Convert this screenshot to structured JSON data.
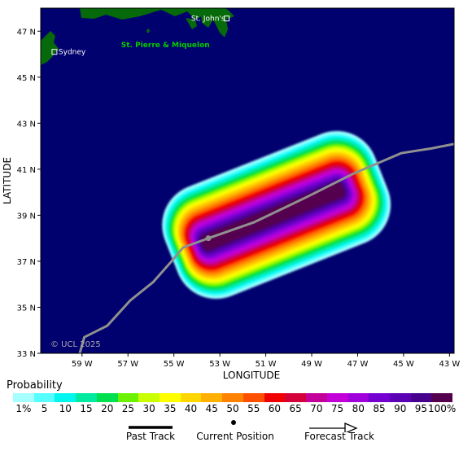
{
  "map": {
    "xlabel": "LONGITUDE",
    "ylabel": "LATITUDE",
    "lon_range": [
      -60.8,
      -42.8
    ],
    "lat_range": [
      33.0,
      48.0
    ],
    "lon_ticks": [
      {
        "value": -59,
        "label": "59 W"
      },
      {
        "value": -57,
        "label": "57 W"
      },
      {
        "value": -55,
        "label": "55 W"
      },
      {
        "value": -53,
        "label": "53 W"
      },
      {
        "value": -51,
        "label": "51 W"
      },
      {
        "value": -49,
        "label": "49 W"
      },
      {
        "value": -47,
        "label": "47 W"
      },
      {
        "value": -45,
        "label": "45 W"
      },
      {
        "value": -43,
        "label": "43 W"
      }
    ],
    "lat_ticks": [
      {
        "value": 47,
        "label": "47 N"
      },
      {
        "value": 45,
        "label": "45 N"
      },
      {
        "value": 43,
        "label": "43 N"
      },
      {
        "value": 41,
        "label": "41 N"
      },
      {
        "value": 39,
        "label": "39 N"
      },
      {
        "value": 37,
        "label": "37 N"
      },
      {
        "value": 35,
        "label": "35 N"
      },
      {
        "value": 33,
        "label": "33 N"
      }
    ],
    "ocean_color": "#00006e",
    "land_color": "#066a0b",
    "places": [
      {
        "name": "St. John's",
        "lon": -52.7,
        "lat": 47.55,
        "color": "#ffffff",
        "marker": true
      },
      {
        "name": "Sydney",
        "lon": -60.2,
        "lat": 46.1,
        "color": "#ffffff",
        "marker": true
      },
      {
        "name": "St. Pierre & Miquelon",
        "lon": -57.3,
        "lat": 46.4,
        "color": "#00cc00",
        "marker": false
      }
    ],
    "watermark": "© UCL 2025",
    "track": {
      "color": "#909090",
      "points": [
        {
          "lon": -59.1,
          "lat": 33.0
        },
        {
          "lon": -58.9,
          "lat": 33.7
        },
        {
          "lon": -57.9,
          "lat": 34.2
        },
        {
          "lon": -56.9,
          "lat": 35.3
        },
        {
          "lon": -55.9,
          "lat": 36.1
        },
        {
          "lon": -55.1,
          "lat": 37.0
        },
        {
          "lon": -54.6,
          "lat": 37.6
        },
        {
          "lon": -53.5,
          "lat": 38.0
        },
        {
          "lon": -51.5,
          "lat": 38.7
        },
        {
          "lon": -49.2,
          "lat": 39.8
        },
        {
          "lon": -47.2,
          "lat": 40.8
        },
        {
          "lon": -45.1,
          "lat": 41.7
        },
        {
          "lon": -43.8,
          "lat": 41.9
        },
        {
          "lon": -42.8,
          "lat": 42.1
        }
      ]
    },
    "probability_field": {
      "start": {
        "lon": -53.6,
        "lat": 37.8
      },
      "end": {
        "lon": -47.8,
        "lat": 40.1
      },
      "peak_percent": 100
    }
  },
  "legend": {
    "title": "Probability",
    "colors": [
      "#a6ffff",
      "#55ffff",
      "#00f6ee",
      "#00eaa0",
      "#00e04f",
      "#6cf200",
      "#c9ff00",
      "#ffff00",
      "#ffd700",
      "#ffb000",
      "#ff8200",
      "#ff5000",
      "#f00000",
      "#d3003a",
      "#c4009a",
      "#c400d8",
      "#a000dc",
      "#7500d2",
      "#5b00b2",
      "#46008d",
      "#55004f"
    ],
    "labels": [
      "1%",
      "5",
      "10",
      "15",
      "20",
      "25",
      "30",
      "35",
      "40",
      "45",
      "50",
      "55",
      "60",
      "65",
      "70",
      "75",
      "80",
      "85",
      "90",
      "95",
      "100%"
    ],
    "past_track_label": "Past Track",
    "current_position_label": "Current Position",
    "forecast_track_label": "Forecast Track"
  }
}
